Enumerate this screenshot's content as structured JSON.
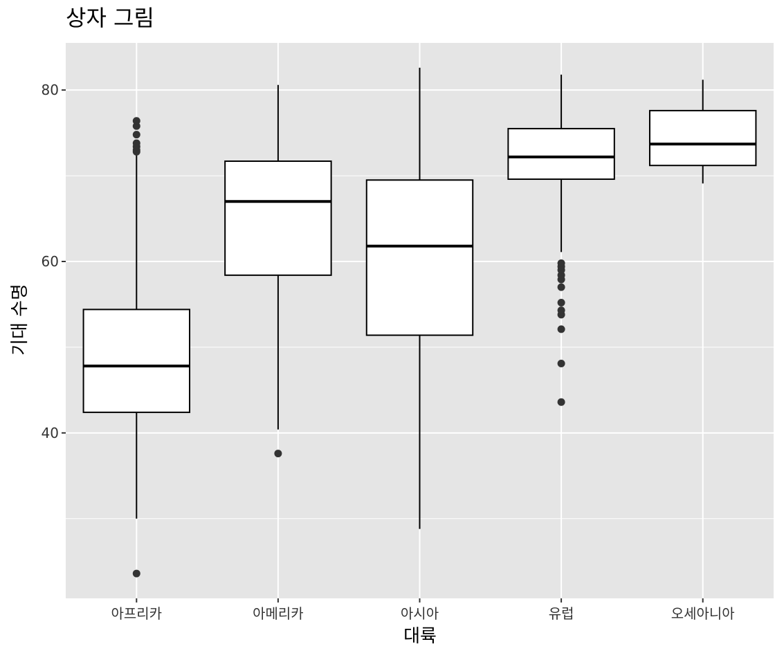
{
  "chart_data": {
    "type": "boxplot",
    "title": "상자 그림",
    "xlabel": "대륙",
    "ylabel": "기대 수명",
    "ylim": [
      20.7,
      85.5
    ],
    "y_ticks": [
      40,
      60,
      80
    ],
    "y_minor_ticks": [
      30,
      50,
      70
    ],
    "grid": true,
    "colors": {
      "panel": "#e5e5e5",
      "grid": "#ffffff",
      "box_fill": "#ffffff",
      "line": "#000000",
      "outlier": "#333333",
      "tick": "#333333"
    },
    "categories": [
      "아프리카",
      "아메리카",
      "아시아",
      "유럽",
      "오세아니아"
    ],
    "boxes": [
      {
        "category": "아프리카",
        "whisker_low": 30.0,
        "q1": 42.4,
        "median": 47.8,
        "q3": 54.4,
        "whisker_high": 72.6,
        "outliers": [
          23.6,
          72.8,
          73.0,
          73.4,
          73.8,
          74.8,
          75.8,
          76.4
        ]
      },
      {
        "category": "아메리카",
        "whisker_low": 40.4,
        "q1": 58.4,
        "median": 67.0,
        "q3": 71.7,
        "whisker_high": 80.6,
        "outliers": [
          37.6
        ]
      },
      {
        "category": "아시아",
        "whisker_low": 28.8,
        "q1": 51.4,
        "median": 61.8,
        "q3": 69.5,
        "whisker_high": 82.6,
        "outliers": []
      },
      {
        "category": "유럽",
        "whisker_low": 61.1,
        "q1": 69.6,
        "median": 72.2,
        "q3": 75.5,
        "whisker_high": 81.8,
        "outliers": [
          43.6,
          48.1,
          52.1,
          53.8,
          54.3,
          55.2,
          57.0,
          57.9,
          58.4,
          59.0,
          59.4,
          59.8
        ]
      },
      {
        "category": "오세아니아",
        "whisker_low": 69.1,
        "q1": 71.2,
        "median": 73.7,
        "q3": 77.6,
        "whisker_high": 81.2,
        "outliers": []
      }
    ]
  }
}
